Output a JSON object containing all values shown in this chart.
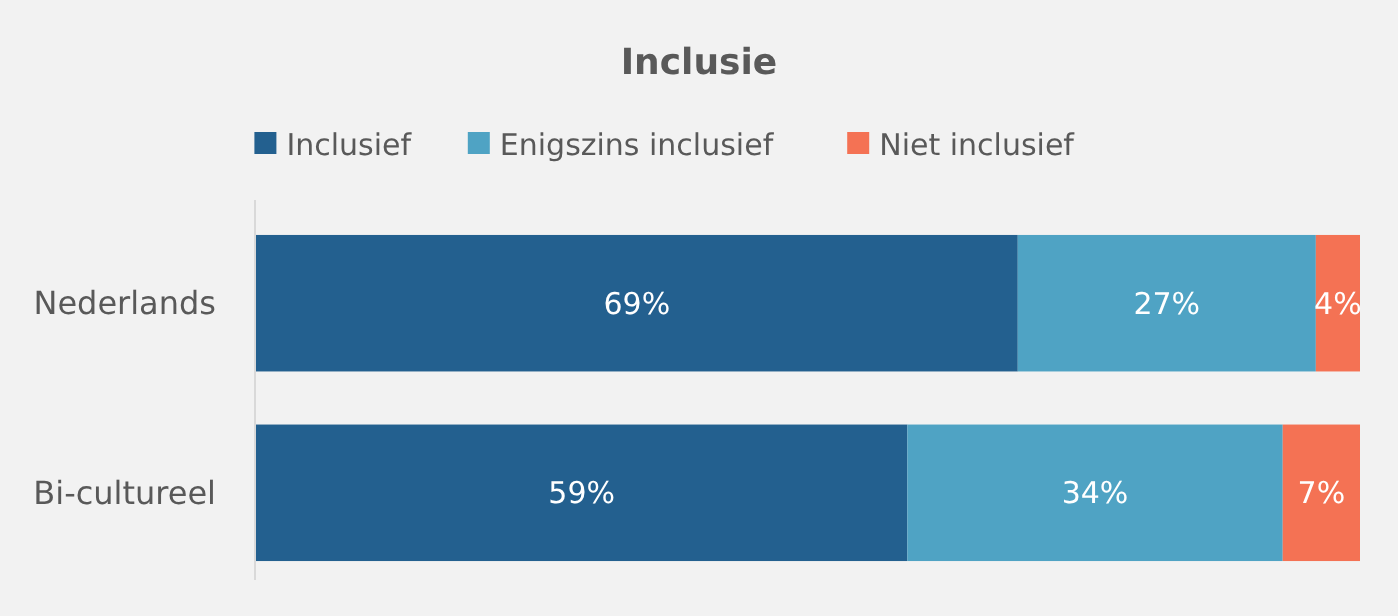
{
  "chart_data": {
    "type": "bar",
    "title": "Inclusie",
    "orientation": "horizontal",
    "stacked": true,
    "categories": [
      "Nederlands",
      "Bi-cultureel"
    ],
    "series": [
      {
        "name": "Inclusief",
        "color": "#23608f",
        "values": [
          69,
          59
        ],
        "value_labels": [
          "69%",
          "59%"
        ]
      },
      {
        "name": "Enigszins inclusief",
        "color": "#4fa3c4",
        "values": [
          27,
          34
        ],
        "value_labels": [
          "27%",
          "34%"
        ]
      },
      {
        "name": "Niet inclusief",
        "color": "#f47254",
        "values": [
          4,
          7
        ],
        "value_labels": [
          "4%",
          "7%"
        ]
      }
    ],
    "legend": "top"
  }
}
